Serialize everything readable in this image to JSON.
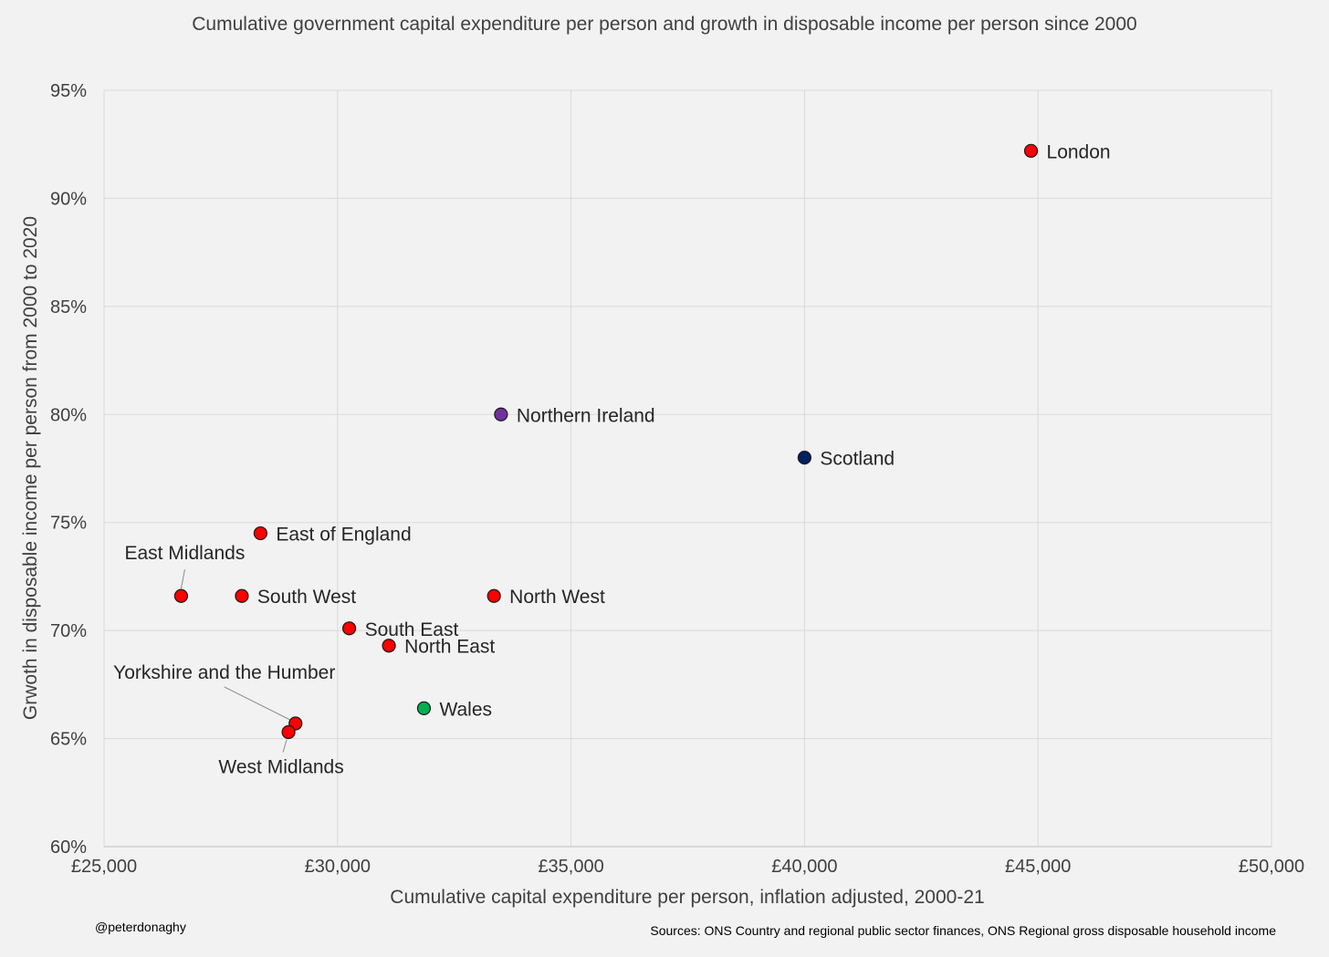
{
  "credit": "@peterdonaghy",
  "sources": "Sources: ONS Country and regional public sector finances, ONS Regional gross disposable household income",
  "chart_data": {
    "type": "scatter",
    "title": "Cumulative government capital expenditure per person and growth in disposable income per person since 2000",
    "xlabel": "Cumulative capital expenditure per person, inflation adjusted, 2000-21",
    "ylabel": "Grwoth in disposable income per person from 2000 to 2020",
    "xlim": [
      25000,
      50000
    ],
    "ylim": [
      60,
      95
    ],
    "x_ticks": [
      25000,
      30000,
      35000,
      40000,
      45000,
      50000
    ],
    "x_tick_labels": [
      "£25,000",
      "£30,000",
      "£35,000",
      "£40,000",
      "£45,000",
      "£50,000"
    ],
    "y_ticks": [
      60,
      65,
      70,
      75,
      80,
      85,
      90,
      95
    ],
    "y_tick_labels": [
      "60%",
      "65%",
      "70%",
      "75%",
      "80%",
      "85%",
      "90%",
      "95%"
    ],
    "grid": true,
    "points": [
      {
        "label": "London",
        "x": 44850,
        "y": 92.2,
        "color": "#ff0000",
        "label_pos": "right"
      },
      {
        "label": "Northern Ireland",
        "x": 33500,
        "y": 80.0,
        "color": "#7030a0",
        "label_pos": "right"
      },
      {
        "label": "Scotland",
        "x": 40000,
        "y": 78.0,
        "color": "#002060",
        "label_pos": "right"
      },
      {
        "label": "East of England",
        "x": 28350,
        "y": 74.5,
        "color": "#ff0000",
        "label_pos": "right"
      },
      {
        "label": "East Midlands",
        "x": 26650,
        "y": 71.6,
        "color": "#ff0000",
        "label_pos": "above-left"
      },
      {
        "label": "South West",
        "x": 27950,
        "y": 71.6,
        "color": "#ff0000",
        "label_pos": "right"
      },
      {
        "label": "North West",
        "x": 33350,
        "y": 71.6,
        "color": "#ff0000",
        "label_pos": "right"
      },
      {
        "label": "South East",
        "x": 30250,
        "y": 70.1,
        "color": "#ff0000",
        "label_pos": "right"
      },
      {
        "label": "North East",
        "x": 31100,
        "y": 69.3,
        "color": "#ff0000",
        "label_pos": "right"
      },
      {
        "label": "Wales",
        "x": 31850,
        "y": 66.4,
        "color": "#00b050",
        "label_pos": "right"
      },
      {
        "label": "Yorkshire and the Humber",
        "x": 29100,
        "y": 65.7,
        "color": "#ff0000",
        "label_pos": "above-left"
      },
      {
        "label": "West Midlands",
        "x": 28950,
        "y": 65.3,
        "color": "#ff0000",
        "label_pos": "below"
      }
    ]
  }
}
